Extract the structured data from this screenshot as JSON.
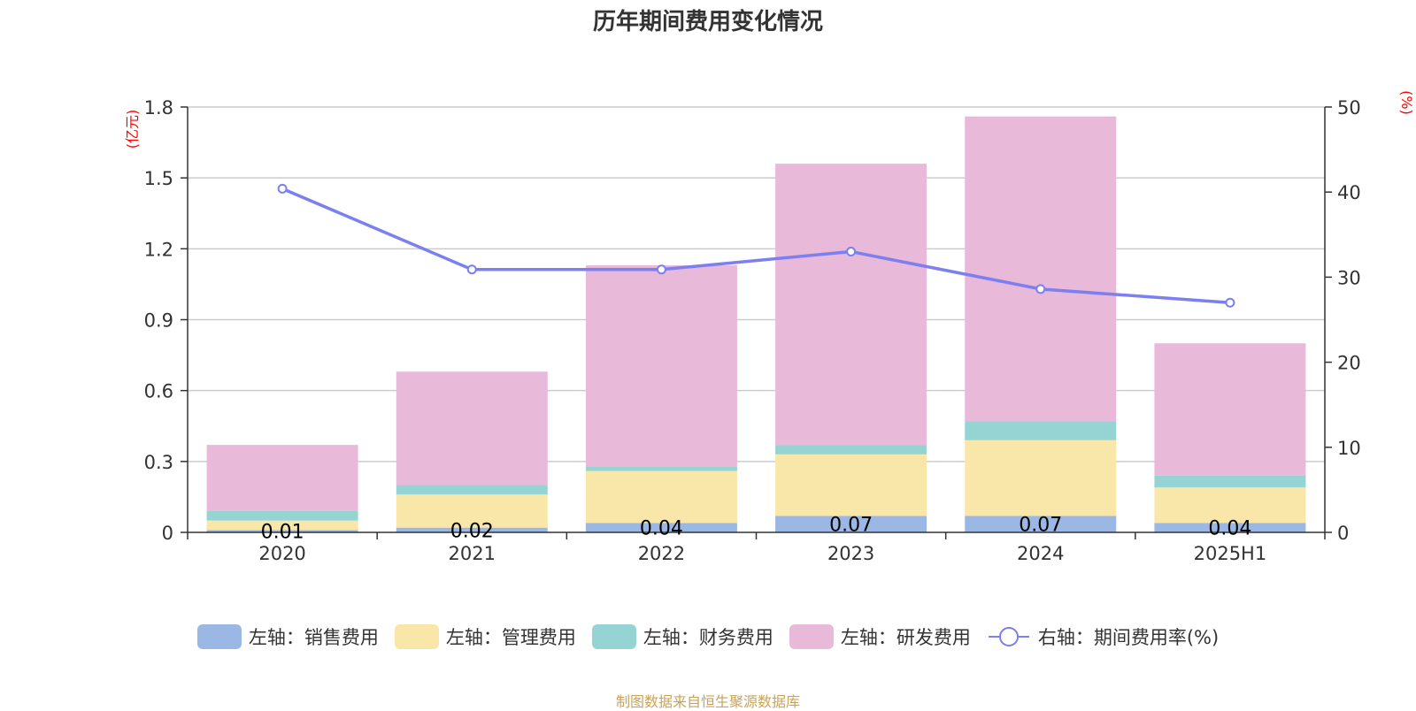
{
  "chart_data": {
    "type": "bar",
    "title": "历年期间费用变化情况",
    "categories": [
      "2020",
      "2021",
      "2022",
      "2023",
      "2024",
      "2025H1"
    ],
    "stacked": true,
    "y_left": {
      "unit": "(亿元)",
      "range": [
        0,
        1.8
      ],
      "ticks": [
        "0",
        "0.3",
        "0.6",
        "0.9",
        "1.2",
        "1.5",
        "1.8"
      ]
    },
    "y_right": {
      "unit": "(%)",
      "range": [
        0,
        50
      ],
      "ticks": [
        "0",
        "10",
        "20",
        "30",
        "40",
        "50"
      ]
    },
    "grid": true,
    "legend_position": "bottom",
    "series": [
      {
        "name": "左轴：销售费用",
        "color": "#9bb7e3",
        "values": [
          0.01,
          0.02,
          0.04,
          0.07,
          0.07,
          0.04
        ],
        "labels": [
          "0.01",
          "0.02",
          "0.04",
          "0.07",
          "0.07",
          "0.04"
        ]
      },
      {
        "name": "左轴：管理费用",
        "color": "#f8e7a8",
        "values": [
          0.04,
          0.14,
          0.22,
          0.26,
          0.32,
          0.15
        ]
      },
      {
        "name": "左轴：财务费用",
        "color": "#96d4d3",
        "values": [
          0.04,
          0.04,
          0.02,
          0.04,
          0.08,
          0.05
        ]
      },
      {
        "name": "左轴：研发费用",
        "color": "#e8b9d9",
        "values": [
          0.28,
          0.48,
          0.85,
          1.19,
          1.29,
          0.56
        ]
      }
    ],
    "line_series": {
      "name": "右轴：期间费用率(%)",
      "color": "#7b7ff0",
      "axis": "right",
      "values": [
        40.4,
        30.9,
        30.9,
        33.0,
        28.6,
        27.0
      ]
    }
  },
  "source": "制图数据来自恒生聚源数据库"
}
